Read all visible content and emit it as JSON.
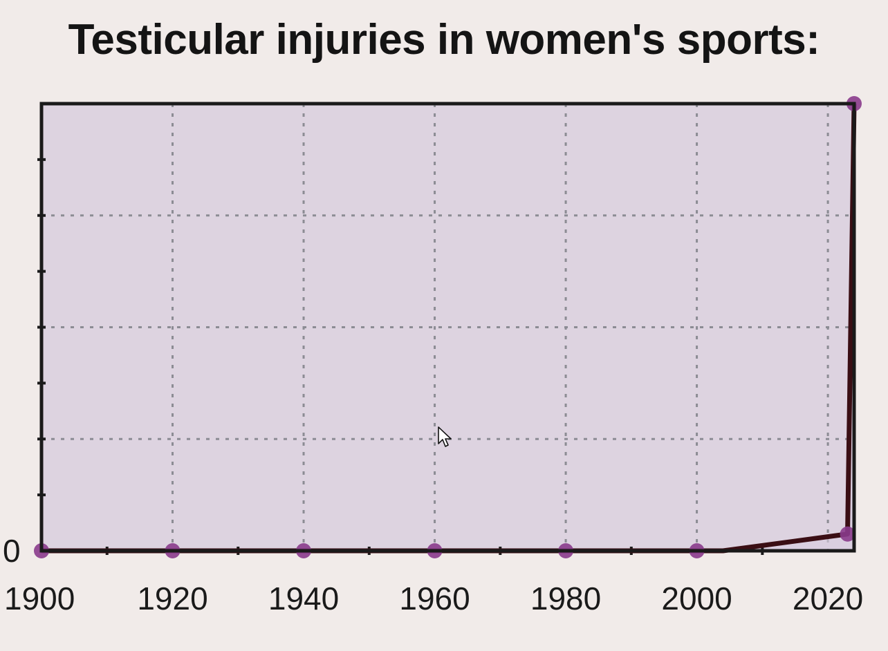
{
  "chart_data": {
    "type": "line",
    "title": "Testicular injuries in women's sports:",
    "xlabel": "",
    "ylabel": "",
    "x": [
      1900,
      1920,
      1940,
      1960,
      1980,
      2000,
      2004,
      2023,
      2024
    ],
    "series": [
      {
        "values": [
          0,
          0,
          0,
          0,
          0,
          0,
          0,
          0.15,
          4
        ],
        "markers": [
          true,
          true,
          true,
          true,
          true,
          true,
          false,
          true,
          true
        ]
      }
    ],
    "xlim": [
      1900,
      2024
    ],
    "ylim": [
      0,
      4
    ],
    "x_ticks": [
      "1900",
      "1920",
      "1940",
      "1960",
      "1980",
      "2000",
      "2020"
    ],
    "y_ticks": [
      "0"
    ],
    "grid": true,
    "colors": {
      "background": "#f1ebe9",
      "plot_area": "#ddd3e0",
      "fill": "#d9cde0",
      "line": "#3a0e14",
      "marker": "#8a3b8c",
      "grid": "#8c8c94"
    }
  }
}
